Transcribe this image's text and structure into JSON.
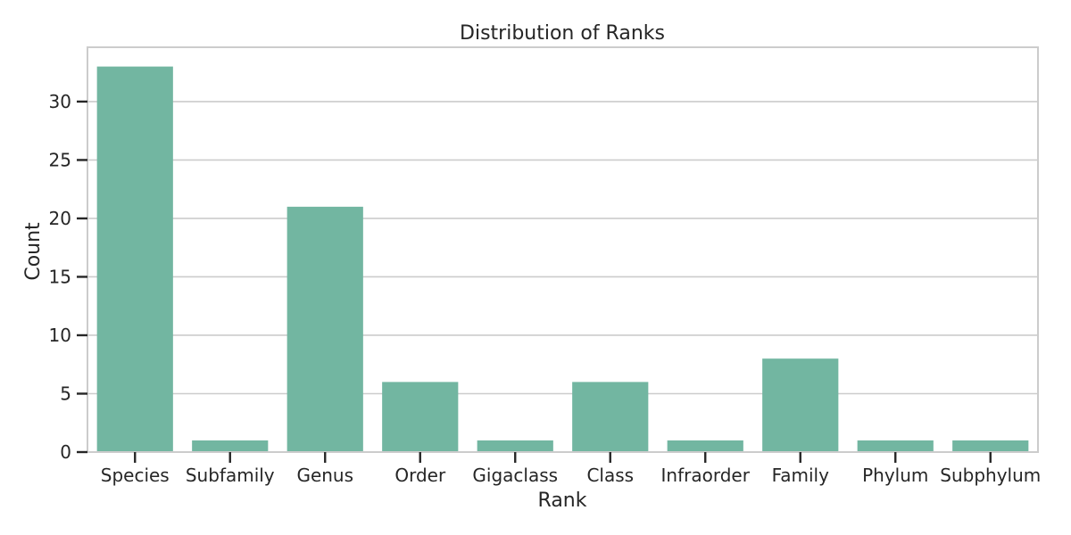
{
  "chart_data": {
    "type": "bar",
    "title": "Distribution of Ranks",
    "xlabel": "Rank",
    "ylabel": "Count",
    "categories": [
      "Species",
      "Subfamily",
      "Genus",
      "Order",
      "Gigaclass",
      "Class",
      "Infraorder",
      "Family",
      "Phylum",
      "Subphylum"
    ],
    "values": [
      33,
      1,
      21,
      6,
      1,
      6,
      1,
      8,
      1,
      1
    ],
    "ylim": [
      0,
      34.65
    ],
    "yticks": [
      0,
      5,
      10,
      15,
      20,
      25,
      30
    ],
    "grid": true,
    "bar_color": "#72b6a1"
  }
}
